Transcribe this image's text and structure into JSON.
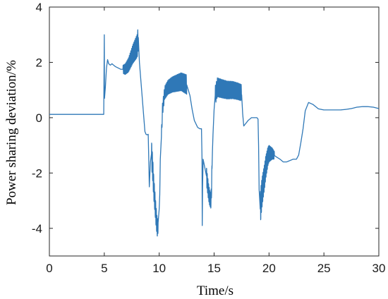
{
  "chart_data": {
    "type": "line",
    "title": "",
    "xlabel": "Time/s",
    "ylabel": "Power sharing deviation/%",
    "xlim": [
      0,
      30
    ],
    "ylim": [
      -5,
      4
    ],
    "xticks": [
      0,
      5,
      10,
      15,
      20,
      25,
      30
    ],
    "yticks": [
      -4,
      -2,
      0,
      2,
      4
    ],
    "grid": false,
    "legend": "none",
    "series": [
      {
        "color": "#2f78b7",
        "x": [
          0,
          4.95,
          5.0,
          5.02,
          5.1,
          5.2,
          5.3,
          5.4,
          5.55,
          5.7,
          6.0,
          6.5,
          6.9,
          7.2,
          7.6,
          8.0,
          8.1,
          8.2,
          8.4,
          8.6,
          8.7,
          8.8,
          8.9,
          9.0,
          9.05,
          9.1,
          9.2,
          9.3,
          9.4,
          9.5,
          9.6,
          9.7,
          9.8,
          9.85,
          9.9,
          10.0,
          10.05,
          10.1,
          10.2,
          10.3,
          10.5,
          10.8,
          11.2,
          11.6,
          12.0,
          12.5,
          12.8,
          13.0,
          13.2,
          13.5,
          13.7,
          13.85,
          13.9,
          13.92,
          13.95,
          14.0,
          14.1,
          14.2,
          14.3,
          14.4,
          14.5,
          14.6,
          14.7,
          14.75,
          14.8,
          14.85,
          14.9,
          15.0,
          15.1,
          15.3,
          15.7,
          16.2,
          16.7,
          17.2,
          17.5,
          17.6,
          17.7,
          17.9,
          18.1,
          18.4,
          18.7,
          18.9,
          19.0,
          19.05,
          19.1,
          19.2,
          19.3,
          19.4,
          19.6,
          19.7,
          19.8,
          19.9,
          20.0,
          20.3,
          20.6,
          21.0,
          21.3,
          21.6,
          21.9,
          22.2,
          22.5,
          22.7,
          22.9,
          23.1,
          23.3,
          23.6,
          24.0,
          24.5,
          25.0,
          25.5,
          26.0,
          26.5,
          27.0,
          27.5,
          28.0,
          28.5,
          29.0,
          29.5,
          30.0
        ],
        "y": [
          0.12,
          0.12,
          3.0,
          0.7,
          1.1,
          1.8,
          2.1,
          1.95,
          1.9,
          1.95,
          1.85,
          1.75,
          1.75,
          1.9,
          2.3,
          2.6,
          2.9,
          2.0,
          1.0,
          0.0,
          -0.5,
          -0.6,
          -0.62,
          -0.6,
          -1.5,
          -2.5,
          -1.6,
          -1.3,
          -1.8,
          -2.5,
          -3.0,
          -3.5,
          -3.9,
          -4.0,
          -3.8,
          -3.3,
          -2.8,
          -1.5,
          -0.7,
          0.3,
          0.9,
          1.1,
          1.2,
          1.25,
          1.3,
          1.2,
          0.8,
          0.3,
          -0.1,
          -0.35,
          -0.4,
          -0.4,
          -1.5,
          -3.9,
          -2.5,
          -1.5,
          -1.7,
          -1.9,
          -2.1,
          -2.4,
          -2.7,
          -2.9,
          -3.0,
          -2.8,
          -2.0,
          -1.2,
          -0.6,
          0.3,
          0.8,
          1.1,
          1.05,
          1.0,
          1.0,
          0.95,
          0.9,
          0.15,
          -0.3,
          -0.2,
          -0.1,
          0.0,
          0.0,
          0.0,
          -0.05,
          -1.0,
          -2.6,
          -3.3,
          -2.9,
          -2.6,
          -2.1,
          -1.8,
          -1.6,
          -1.4,
          -1.3,
          -1.3,
          -1.4,
          -1.5,
          -1.6,
          -1.6,
          -1.55,
          -1.5,
          -1.5,
          -1.35,
          -0.9,
          -0.4,
          0.25,
          0.55,
          0.48,
          0.32,
          0.28,
          0.28,
          0.28,
          0.28,
          0.3,
          0.33,
          0.38,
          0.4,
          0.4,
          0.38,
          0.33
        ]
      }
    ],
    "ripples": [
      {
        "x0": 6.7,
        "x1": 8.1,
        "amp0": 0.15,
        "amp1": 0.45,
        "period": 0.07
      },
      {
        "x0": 10.2,
        "x1": 12.5,
        "amp0": 0.22,
        "amp1": 0.35,
        "period": 0.08
      },
      {
        "x0": 15.1,
        "x1": 17.5,
        "amp0": 0.35,
        "amp1": 0.3,
        "period": 0.09
      },
      {
        "x0": 19.2,
        "x1": 20.5,
        "amp0": 0.65,
        "amp1": 0.15,
        "period": 0.06
      },
      {
        "x0": 9.3,
        "x1": 9.9,
        "amp0": 0.5,
        "amp1": 0.35,
        "period": 0.06
      },
      {
        "x0": 14.3,
        "x1": 14.8,
        "amp0": 0.35,
        "amp1": 0.3,
        "period": 0.06
      }
    ]
  }
}
